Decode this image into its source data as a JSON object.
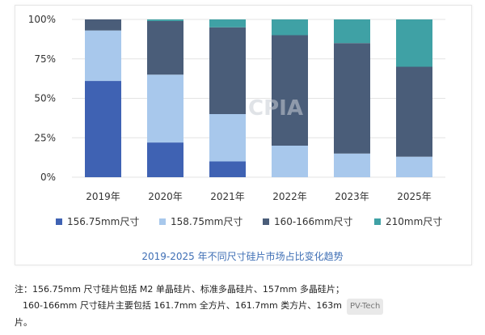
{
  "chart_data": {
    "type": "bar",
    "stacked": true,
    "categories": [
      "2019年",
      "2020年",
      "2021年",
      "2022年",
      "2023年",
      "2025年"
    ],
    "yticks": [
      "0%",
      "25%",
      "50%",
      "75%",
      "100%"
    ],
    "ylim": [
      0,
      100
    ],
    "grid": true,
    "legend_position": "bottom",
    "series": [
      {
        "name": "156.75mm尺寸",
        "color": "#3f62b3",
        "values": [
          61,
          22,
          10,
          0,
          0,
          0
        ]
      },
      {
        "name": "158.75mm尺寸",
        "color": "#a8c8ec",
        "values": [
          32,
          43,
          30,
          20,
          15,
          13
        ]
      },
      {
        "name": "160-166mm尺寸",
        "color": "#4a5d79",
        "values": [
          7,
          34,
          55,
          70,
          70,
          57
        ]
      },
      {
        "name": "210mm尺寸",
        "color": "#3fa1a5",
        "values": [
          0,
          1,
          5,
          10,
          15,
          30
        ]
      }
    ],
    "title": "2019-2025 年不同尺寸硅片市场占比变化趋势",
    "watermark": "CPIA"
  },
  "notes": {
    "prefix": "注：",
    "line1": "156.75mm 尺寸硅片包括 M2 单晶硅片、标准多晶硅片、157mm 多晶硅片；",
    "line2": "160-166mm 尺寸硅片主要包括 161.7mm 全方片、161.7mm 类方片、163m",
    "line2_overlay": "PV-Tech",
    "line3": "片。"
  }
}
